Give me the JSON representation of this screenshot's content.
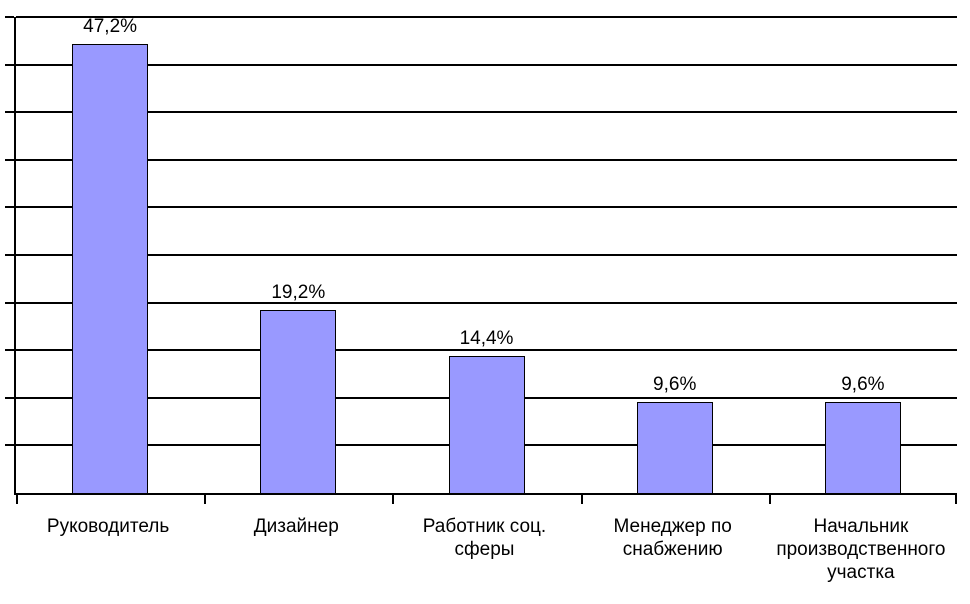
{
  "chart_data": {
    "type": "bar",
    "title": "",
    "xlabel": "",
    "ylabel": "",
    "categories": [
      "Руководитель",
      "Дизайнер",
      "Работник соц.\nсферы",
      "Менеджер по\nснабжению",
      "Начальник\nпроизводственного\nучастка"
    ],
    "values": [
      47.2,
      19.2,
      14.4,
      9.6,
      9.6
    ],
    "value_labels": [
      "47,2%",
      "19,2%",
      "14,4%",
      "9,6%",
      "9,6%"
    ],
    "ylim": [
      0,
      50
    ],
    "gridline_step": 5,
    "grid": "horizontal",
    "legend_visible": false,
    "y_axis_tick_labels_visible": false,
    "colors": {
      "bar_fill": "#9999FF",
      "bar_border": "#000000",
      "gridline": "#000000",
      "axis": "#000000",
      "background": "#FFFFFF",
      "text": "#000000"
    }
  }
}
